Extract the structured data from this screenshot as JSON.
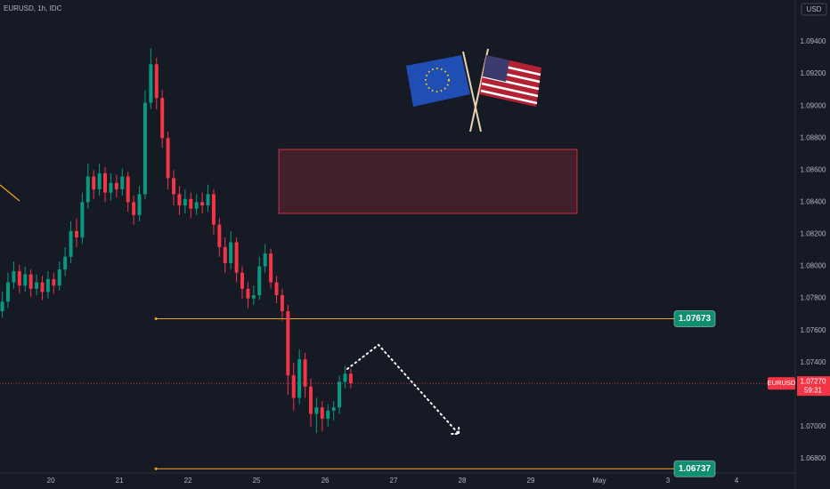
{
  "chart_data": {
    "type": "candlestick",
    "title": "EURUSD, 1h, IDC",
    "currency": "USD",
    "up_color": "#089981",
    "down_color": "#f23645",
    "xlim": [
      -17.8,
      260.6
    ],
    "ylim": [
      1.06711,
      1.09661
    ],
    "xticks": [
      {
        "value": 0,
        "label": "20"
      },
      {
        "value": 24,
        "label": "21"
      },
      {
        "value": 48,
        "label": "22"
      },
      {
        "value": 72,
        "label": "25"
      },
      {
        "value": 96,
        "label": "26"
      },
      {
        "value": 120,
        "label": "27"
      },
      {
        "value": 144,
        "label": "28"
      },
      {
        "value": 168,
        "label": "29"
      },
      {
        "value": 192,
        "label": "May"
      },
      {
        "value": 216,
        "label": "3"
      },
      {
        "value": 240,
        "label": "4"
      }
    ],
    "yticks": [
      {
        "value": 1.094,
        "label": "1.09400"
      },
      {
        "value": 1.092,
        "label": "1.09200"
      },
      {
        "value": 1.09,
        "label": "1.09000"
      },
      {
        "value": 1.088,
        "label": "1.08800"
      },
      {
        "value": 1.086,
        "label": "1.08600"
      },
      {
        "value": 1.084,
        "label": "1.08400"
      },
      {
        "value": 1.082,
        "label": "1.08200"
      },
      {
        "value": 1.08,
        "label": "1.08000"
      },
      {
        "value": 1.078,
        "label": "1.07800"
      },
      {
        "value": 1.076,
        "label": "1.07600"
      },
      {
        "value": 1.074,
        "label": "1.07400"
      },
      {
        "value": 1.07,
        "label": "1.07000"
      },
      {
        "value": 1.068,
        "label": "1.06800"
      }
    ],
    "x": [
      -17,
      -15,
      -13,
      -11,
      -9,
      -7,
      -5,
      -3,
      -1,
      1,
      3,
      5,
      7,
      9,
      11,
      13,
      15,
      17,
      19,
      21,
      23,
      25,
      27,
      29,
      31,
      33,
      35,
      37,
      39,
      41,
      43,
      45,
      47,
      49,
      51,
      53,
      55,
      57,
      59,
      61,
      63,
      65,
      67,
      69,
      71,
      73,
      75,
      77,
      79,
      81,
      83,
      85,
      87,
      89,
      91,
      93,
      95,
      97,
      99,
      101,
      103,
      105
    ],
    "open": [
      1.0772,
      1.0778,
      1.079,
      1.0797,
      1.0788,
      1.0795,
      1.0786,
      1.079,
      1.0784,
      1.0792,
      1.0788,
      1.0798,
      1.0806,
      1.0822,
      1.0818,
      1.084,
      1.0856,
      1.0848,
      1.0858,
      1.0846,
      1.0852,
      1.0848,
      1.0856,
      1.084,
      1.0832,
      1.0845,
      1.0902,
      1.0926,
      1.0905,
      1.088,
      1.0855,
      1.0845,
      1.0838,
      1.0842,
      1.0836,
      1.084,
      1.0838,
      1.0845,
      1.0826,
      1.0812,
      1.0802,
      1.0815,
      1.0796,
      1.0786,
      1.078,
      1.0782,
      1.08,
      1.0808,
      1.079,
      1.0782,
      1.0772,
      1.0732,
      1.0718,
      1.0742,
      1.0725,
      1.0708,
      1.0712,
      1.0705,
      1.071,
      1.0712,
      1.0728,
      1.0733
    ],
    "high": [
      1.0784,
      1.0796,
      1.0803,
      1.0801,
      1.08,
      1.0798,
      1.0795,
      1.0794,
      1.0797,
      1.0796,
      1.0803,
      1.0812,
      1.0828,
      1.083,
      1.0846,
      1.0864,
      1.086,
      1.0864,
      1.0862,
      1.0858,
      1.0857,
      1.0861,
      1.0859,
      1.0844,
      1.085,
      1.091,
      1.0936,
      1.093,
      1.091,
      1.0884,
      1.086,
      1.085,
      1.0848,
      1.0846,
      1.0845,
      1.0846,
      1.0851,
      1.0848,
      1.083,
      1.0818,
      1.0822,
      1.0818,
      1.08,
      1.079,
      1.0788,
      1.0806,
      1.0814,
      1.0811,
      1.0794,
      1.0786,
      1.0776,
      1.074,
      1.0748,
      1.0746,
      1.073,
      1.0718,
      1.0716,
      1.0714,
      1.0716,
      1.0732,
      1.0738,
      1.0736
    ],
    "low": [
      1.0768,
      1.0774,
      1.0786,
      1.0783,
      1.0784,
      1.0781,
      1.0782,
      1.0779,
      1.078,
      1.0783,
      1.0785,
      1.0794,
      1.0802,
      1.0812,
      1.0814,
      1.0836,
      1.0842,
      1.0844,
      1.084,
      1.0841,
      1.0843,
      1.0844,
      1.0834,
      1.0826,
      1.0828,
      1.0842,
      1.0898,
      1.0898,
      1.0874,
      1.0848,
      1.0838,
      1.0832,
      1.0833,
      1.083,
      1.0832,
      1.0833,
      1.0834,
      1.082,
      1.0806,
      1.0796,
      1.0798,
      1.079,
      1.078,
      1.0774,
      1.0776,
      1.0779,
      1.0796,
      1.0786,
      1.0777,
      1.0766,
      1.072,
      1.071,
      1.0714,
      1.0718,
      1.07,
      1.0696,
      1.0697,
      1.07,
      1.0704,
      1.0708,
      1.0724,
      1.0724
    ],
    "close": [
      1.0778,
      1.079,
      1.0797,
      1.0788,
      1.0795,
      1.0786,
      1.079,
      1.0784,
      1.0792,
      1.0788,
      1.0798,
      1.0806,
      1.0822,
      1.0818,
      1.084,
      1.0856,
      1.0848,
      1.0858,
      1.0846,
      1.0852,
      1.0848,
      1.0856,
      1.084,
      1.0832,
      1.0845,
      1.0902,
      1.0926,
      1.0905,
      1.088,
      1.0855,
      1.0845,
      1.0838,
      1.0842,
      1.0836,
      1.084,
      1.0838,
      1.0845,
      1.0826,
      1.0812,
      1.0802,
      1.0815,
      1.0796,
      1.0786,
      1.078,
      1.0782,
      1.08,
      1.0808,
      1.079,
      1.0782,
      1.0772,
      1.0732,
      1.0718,
      1.0742,
      1.0725,
      1.0708,
      1.0712,
      1.0705,
      1.071,
      1.0712,
      1.0728,
      1.0733,
      1.0727
    ],
    "levels": [
      {
        "value": 1.07673,
        "from": 36.8
      },
      {
        "value": 1.06737,
        "from": 36.8
      }
    ],
    "level_color": "#f5a623",
    "level_label_color": "#0e8f6e",
    "last_price": {
      "symbol": "EURUSD",
      "value": 1.0727,
      "label": "1.07270",
      "countdown": "59:31"
    },
    "zone": {
      "top": 1.08729,
      "bottom": 1.0833,
      "x": [
        79.8,
        184.2
      ],
      "color": "#f23645"
    },
    "projection": {
      "x": [
        103.8,
        114.7,
        142.8
      ],
      "values": [
        1.0736,
        1.0751,
        1.06955
      ],
      "color": "#ffffff"
    }
  }
}
